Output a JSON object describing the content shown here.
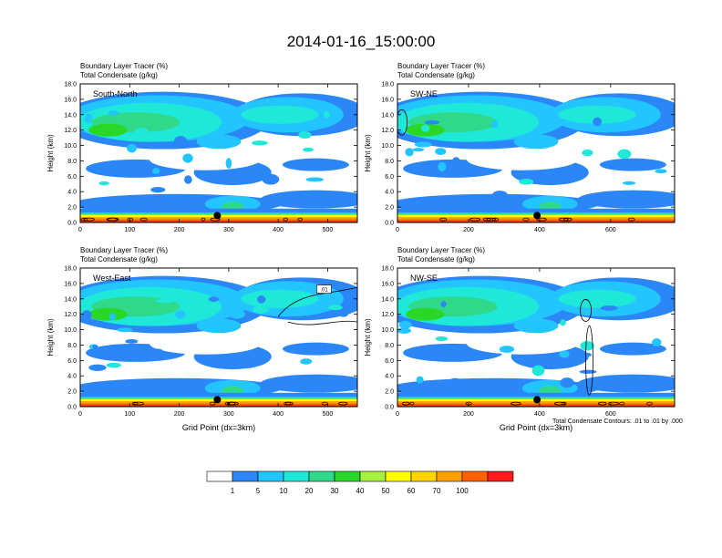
{
  "title": "2014-01-16_15:00:00",
  "footnote": "Total Condensate Contours: .01 to .01 by .000",
  "xlabel": "Grid Point (dx=3km)",
  "palette": [
    "#ffffff",
    "#2b86f8",
    "#22c5ff",
    "#1ee8d8",
    "#30d98a",
    "#2ad626",
    "#a5f040",
    "#ffff00",
    "#ffd400",
    "#ffa000",
    "#ff6000",
    "#ff1a1a"
  ],
  "colorbar": {
    "labels": [
      "1",
      "5",
      "10",
      "20",
      "30",
      "40",
      "50",
      "60",
      "70",
      "100"
    ]
  },
  "chart_data": [
    {
      "type": "heatmap",
      "name": "South-North",
      "subtitle_1": "Boundary Layer Tracer    (%)",
      "subtitle_2": "Total Condensate   (g/kg)",
      "ylabel": "Height (km)",
      "xlabel": "",
      "xlim": [
        0,
        560
      ],
      "ylim": [
        0,
        18
      ],
      "xticks": [
        0,
        100,
        200,
        300,
        400,
        500
      ],
      "yticks": [
        "0.0",
        "2.0",
        "4.0",
        "6.0",
        "8.0",
        "10.0",
        "12.0",
        "14.0",
        "16.0",
        "18.0"
      ],
      "marker_x": 277,
      "contour_label": ""
    },
    {
      "type": "heatmap",
      "name": "SW-NE",
      "subtitle_1": "Boundary Layer Tracer    (%)",
      "subtitle_2": "Total Condensate   (g/kg)",
      "ylabel": "Height (km)",
      "xlabel": "",
      "xlim": [
        0,
        780
      ],
      "ylim": [
        0,
        18
      ],
      "xticks": [
        0,
        200,
        400,
        600
      ],
      "yticks": [
        "0.0",
        "2.0",
        "4.0",
        "6.0",
        "8.0",
        "10.0",
        "12.0",
        "14.0",
        "16.0",
        "18.0"
      ],
      "marker_x": 393,
      "contour_label": ""
    },
    {
      "type": "heatmap",
      "name": "West-East",
      "subtitle_1": "Boundary Layer Tracer    (%)",
      "subtitle_2": "Total Condensate   (g/kg)",
      "ylabel": "Height (km)",
      "xlabel": "Grid Point (dx=3km)",
      "xlim": [
        0,
        560
      ],
      "ylim": [
        0,
        18
      ],
      "xticks": [
        0,
        100,
        200,
        300,
        400,
        500
      ],
      "yticks": [
        "0.0",
        "2.0",
        "4.0",
        "6.0",
        "8.0",
        "10.0",
        "12.0",
        "14.0",
        "16.0",
        "18.0"
      ],
      "marker_x": 277,
      "contour_label": ".01"
    },
    {
      "type": "heatmap",
      "name": "NW-SE",
      "subtitle_1": "Boundary Layer Tracer    (%)",
      "subtitle_2": "Total Condensate   (g/kg)",
      "ylabel": "Height (km)",
      "xlabel": "Grid Point (dx=3km)",
      "xlim": [
        0,
        780
      ],
      "ylim": [
        0,
        18
      ],
      "xticks": [
        0,
        200,
        400,
        600
      ],
      "yticks": [
        "0.0",
        "2.0",
        "4.0",
        "6.0",
        "8.0",
        "10.0",
        "12.0",
        "14.0",
        "16.0",
        "18.0"
      ],
      "marker_x": 393,
      "contour_label": ""
    }
  ]
}
